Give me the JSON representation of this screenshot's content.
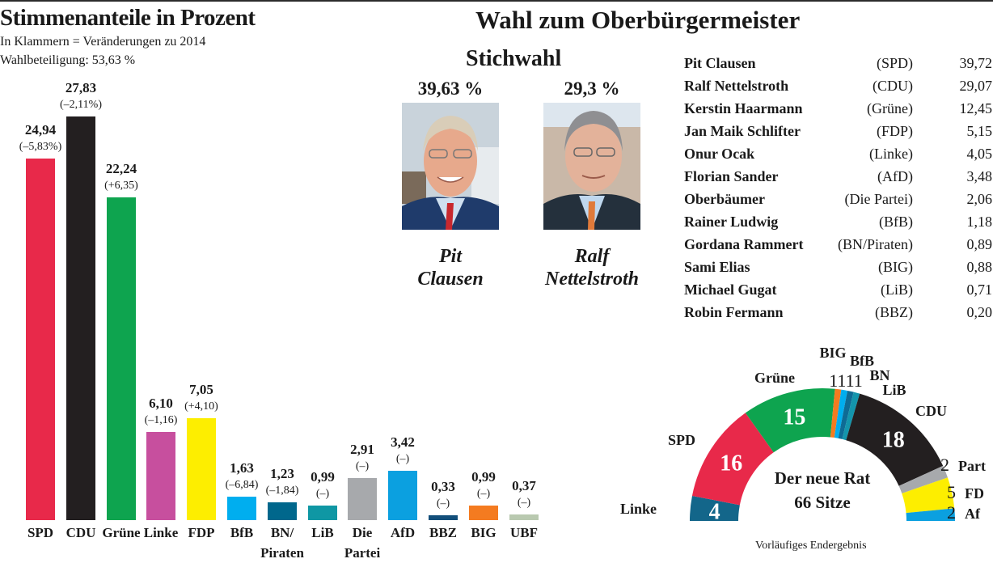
{
  "left": {
    "title": "Stimmenanteile in Prozent",
    "subtitle": "In Klammern = Veränderungen zu 2014",
    "turnout": "Wahlbeteiligung: 53,63 %"
  },
  "right": {
    "title": "Wahl zum Oberbürgermeister",
    "runoff_title": "Stichwahl",
    "runoff": [
      {
        "pct": "39,63 %",
        "name": "Pit\nClausen",
        "tie_color": "#c8282e"
      },
      {
        "pct": "29,3 %",
        "name": "Ralf\nNettelstroth",
        "tie_color": "#e07a3a"
      }
    ],
    "first_round": [
      {
        "name": "Pit Clausen",
        "party": "(SPD)",
        "value": "39,72"
      },
      {
        "name": "Ralf Nettelstroth",
        "party": "(CDU)",
        "value": "29,07"
      },
      {
        "name": "Kerstin Haarmann",
        "party": "(Grüne)",
        "value": "12,45"
      },
      {
        "name": "Jan Maik Schlifter",
        "party": "(FDP)",
        "value": "5,15"
      },
      {
        "name": "Onur Ocak",
        "party": "(Linke)",
        "value": "4,05"
      },
      {
        "name": "Florian Sander",
        "party": "(AfD)",
        "value": "3,48"
      },
      {
        "name": "Oberbäumer",
        "party": "(Die Partei)",
        "value": "2,06"
      },
      {
        "name": "Rainer Ludwig",
        "party": "(BfB)",
        "value": "1,18"
      },
      {
        "name": "Gordana Rammert",
        "party": "(BN/Piraten)",
        "value": "0,89"
      },
      {
        "name": "Sami Elias",
        "party": "(BIG)",
        "value": "0,88"
      },
      {
        "name": "Michael Gugat",
        "party": "(LiB)",
        "value": "0,71"
      },
      {
        "name": "Robin Fermann",
        "party": "(BBZ)",
        "value": "0,20"
      }
    ]
  },
  "seats": {
    "center_line1": "Der neue Rat",
    "center_line2": "66 Sitze",
    "footnote": "Vorläufiges Endergebnis"
  },
  "chart_data": [
    {
      "type": "bar",
      "title": "Stimmenanteile in Prozent",
      "subtitle": "In Klammern = Veränderungen zu 2014",
      "xlabel": "",
      "ylabel": "Prozent",
      "ylim": [
        0,
        30
      ],
      "grid": false,
      "categories": [
        "SPD",
        "CDU",
        "Grüne",
        "Linke",
        "FDP",
        "BfB",
        "BN/\nPiraten",
        "LiB",
        "Die\nPartei",
        "AfD",
        "BBZ",
        "BIG",
        "UBF"
      ],
      "values": [
        24.94,
        27.83,
        22.24,
        6.1,
        7.05,
        1.63,
        1.23,
        0.99,
        2.91,
        3.42,
        0.33,
        0.99,
        0.37
      ],
      "value_labels": [
        "24,94",
        "27,83",
        "22,24",
        "6,10",
        "7,05",
        "1,63",
        "1,23",
        "0,99",
        "2,91",
        "3,42",
        "0,33",
        "0,99",
        "0,37"
      ],
      "change_labels": [
        "(–5,83%)",
        "(–2,11%)",
        "(+6,35)",
        "(–1,16)",
        "(+4,10)",
        "(–6,84)",
        "(–1,84)",
        "(–)",
        "(–)",
        "(–)",
        "(–)",
        "(–)",
        "(–)"
      ],
      "colors": [
        "#e8294a",
        "#231f20",
        "#0ea44f",
        "#c74f9e",
        "#fdee00",
        "#00aeef",
        "#00678c",
        "#0f97a4",
        "#a7a9ac",
        "#0ba0e0",
        "#124e7a",
        "#f47b20",
        "#b9c9b0"
      ]
    },
    {
      "type": "pie",
      "subtype": "semicircle",
      "title": "Der neue Rat 66 Sitze",
      "total": 66,
      "segments": [
        {
          "label": "Linke",
          "value": 4,
          "color": "#13668a"
        },
        {
          "label": "SPD",
          "value": 16,
          "color": "#e8294a"
        },
        {
          "label": "Grüne",
          "value": 15,
          "color": "#0ea44f"
        },
        {
          "label": "BIG",
          "value": 1,
          "color": "#f47b20"
        },
        {
          "label": "BfB",
          "value": 1,
          "color": "#00aeef"
        },
        {
          "label": "BN",
          "value": 1,
          "color": "#0e6b95"
        },
        {
          "label": "LiB",
          "value": 1,
          "color": "#1395ac"
        },
        {
          "label": "CDU",
          "value": 18,
          "color": "#231f20"
        },
        {
          "label": "Part",
          "value": 2,
          "color": "#a7a9ac"
        },
        {
          "label": "FD",
          "value": 5,
          "color": "#fdee00"
        },
        {
          "label": "Af",
          "value": 2,
          "color": "#0ba0e0"
        }
      ]
    }
  ]
}
